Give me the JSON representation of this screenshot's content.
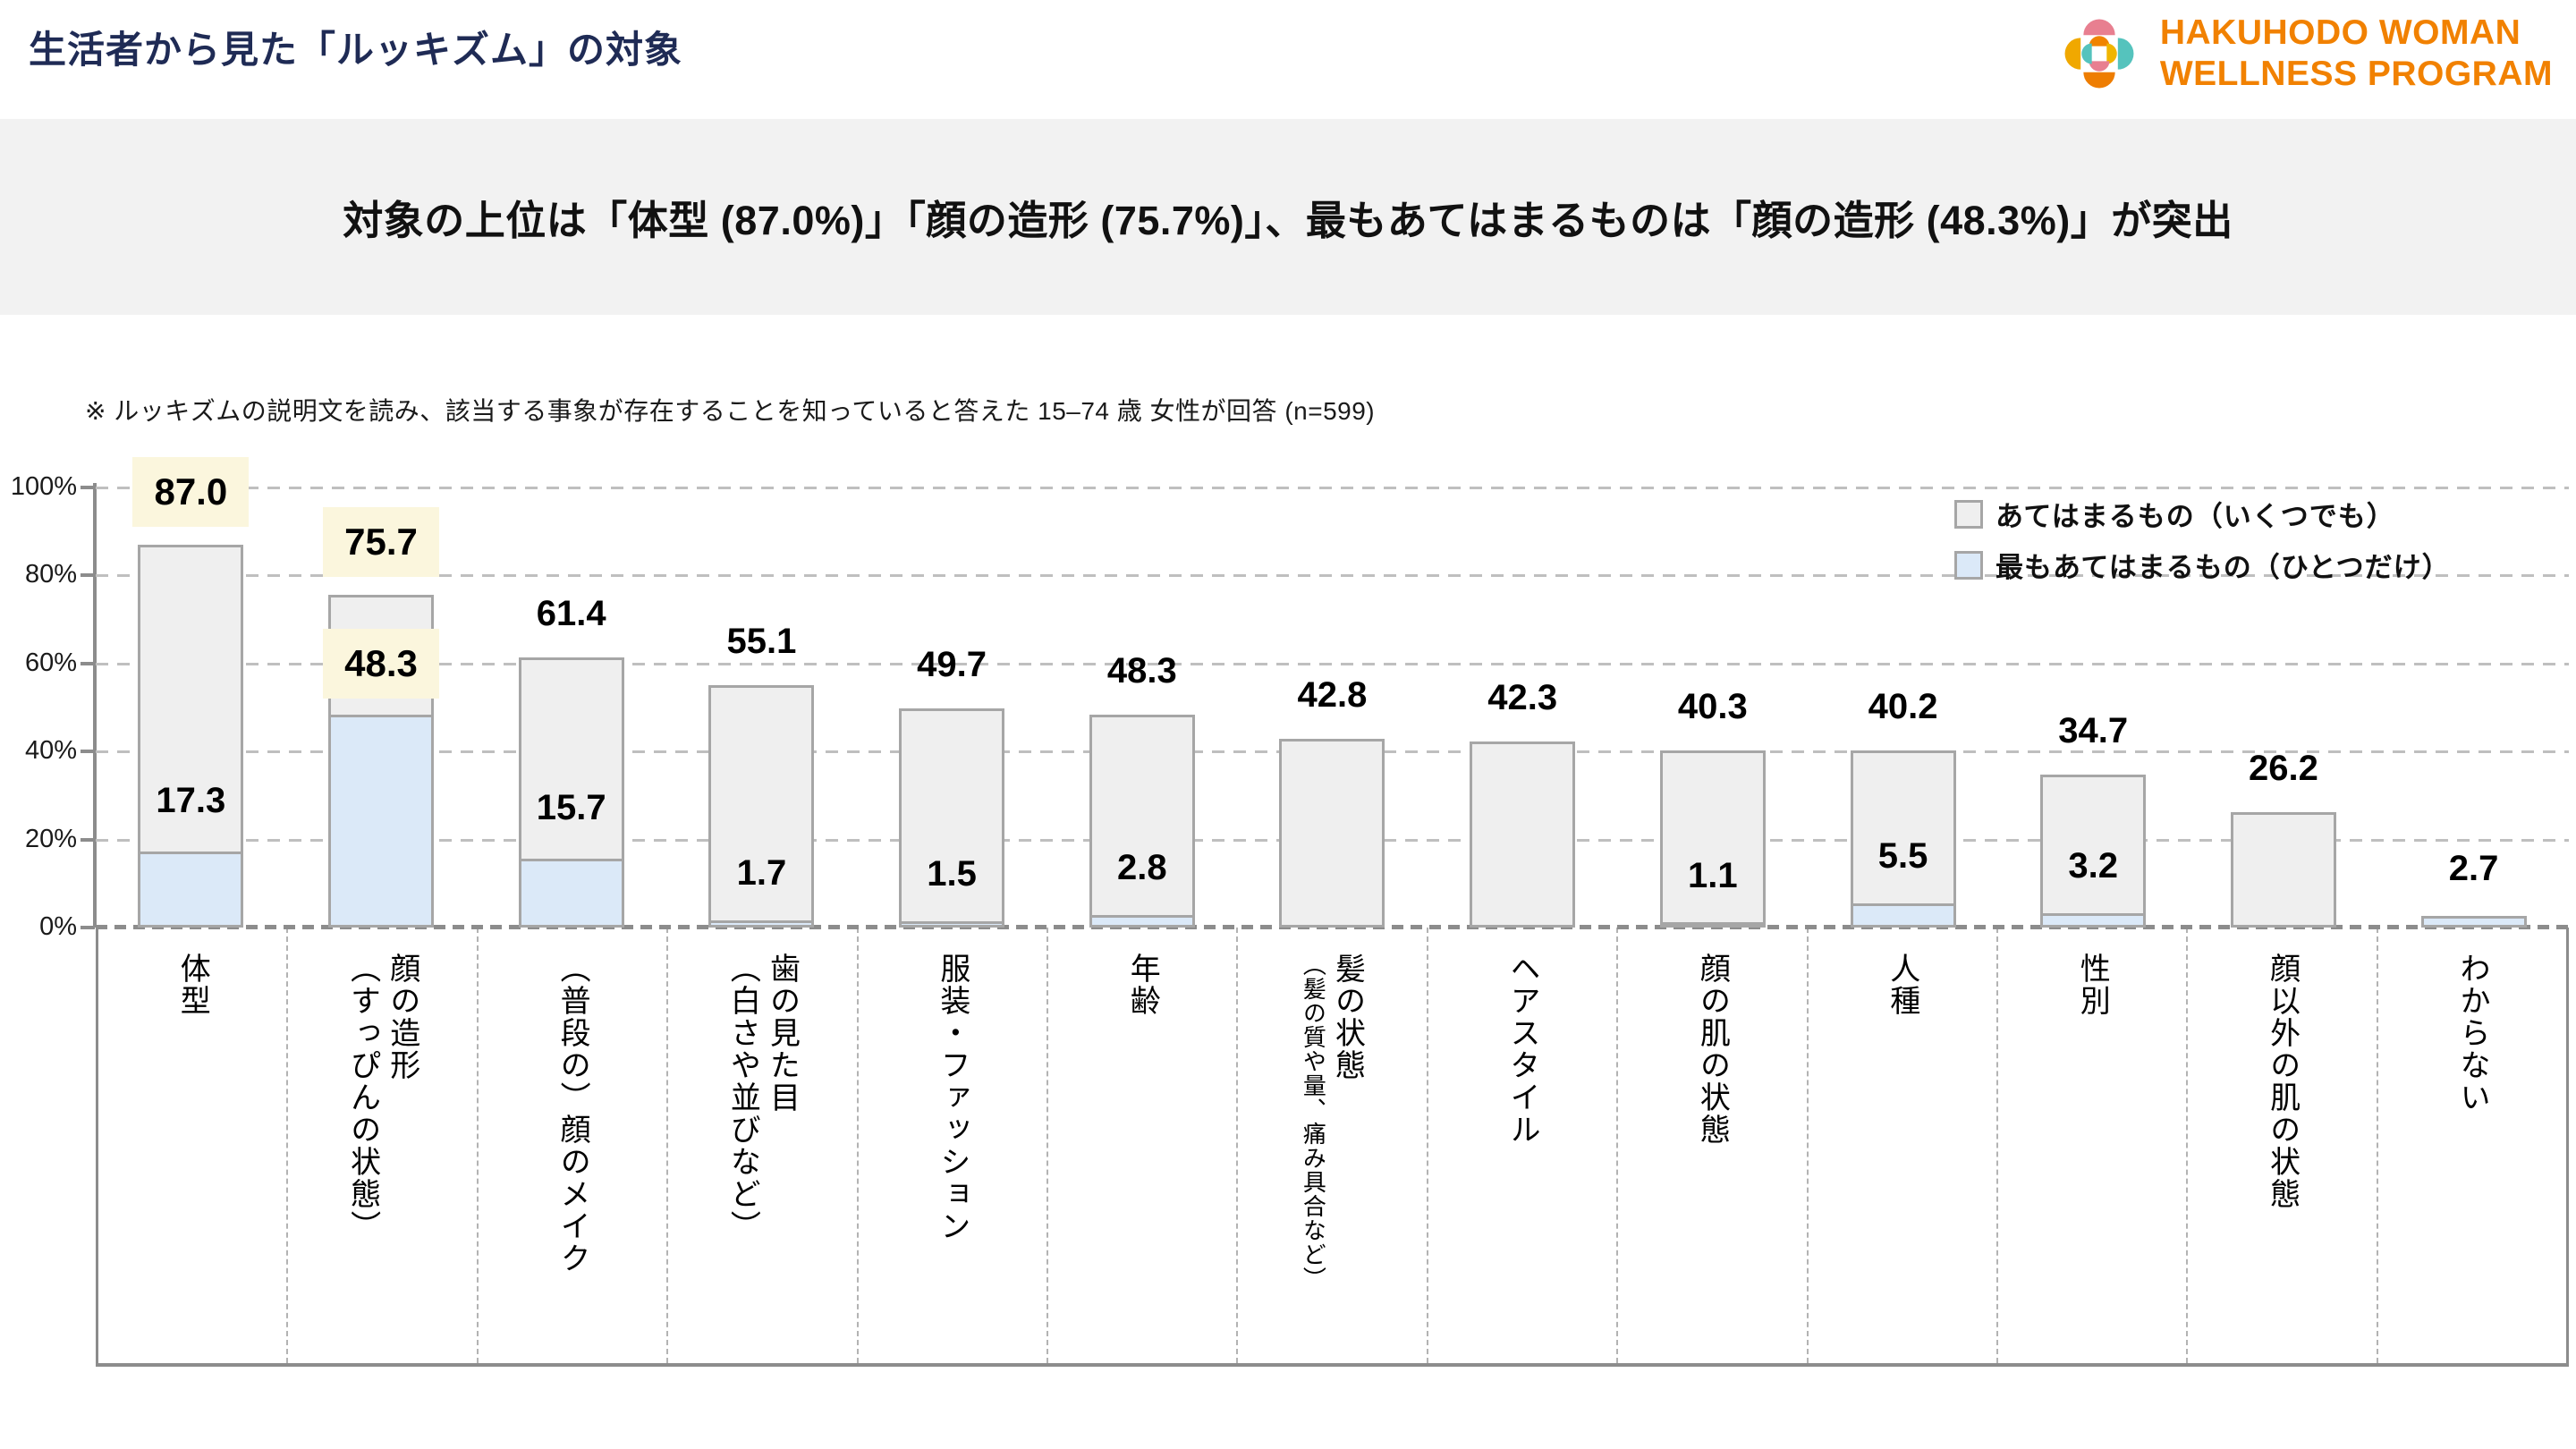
{
  "page": {
    "title": "生活者から見た「ルッキズム」の対象"
  },
  "logo": {
    "line1": "HAKUHODO WOMAN",
    "line2": "WELLNESS PROGRAM",
    "text_color": "#F18101",
    "petal_colors": {
      "outer_top": "#E87F90",
      "outer_right": "#55C3BD",
      "outer_bottom": "#EE7D01",
      "outer_left": "#F0A800",
      "inner_top": "#F08300",
      "inner_right": "#F0B500",
      "inner_bottom": "#E87F90",
      "inner_left": "#55C3BD"
    }
  },
  "headline": {
    "text": "対象の上位は「体型 (87.0%)」「顔の造形 (75.7%)」、最もあてはまるものは「顔の造形 (48.3%)」が突出",
    "background": "#F2F2F2"
  },
  "note": {
    "text": "※ ルッキズムの説明文を読み、該当する事象が存在することを知っていると答えた 15–74 歳 女性が回答 (n=599)"
  },
  "chart_data": {
    "type": "bar",
    "title": "",
    "xlabel": "",
    "ylabel": "",
    "ylim": [
      0,
      100
    ],
    "yticks": [
      "0%",
      "20%",
      "40%",
      "60%",
      "80%",
      "100%"
    ],
    "grid": "dashed-horizontal",
    "legend_position": "top-right",
    "categories": [
      "体型",
      "顔の造形（すっぴんの状態）",
      "（普段の）顔のメイク",
      "歯の見た目（白さや並びなど）",
      "服装・ファッション",
      "年齢",
      "髪の状態（髪の質や量、痛み具合など）",
      "ヘアスタイル",
      "顔の肌の状態",
      "人種",
      "性別",
      "顔以外の肌の状態",
      "わからない"
    ],
    "category_columns": [
      {
        "main": "体型",
        "sub": "",
        "sub_small": false
      },
      {
        "main": "顔の造形",
        "sub": "（すっぴんの状態）",
        "sub_small": false
      },
      {
        "main": "（普段の）顔のメイク",
        "sub": "",
        "sub_small": false
      },
      {
        "main": "歯の見た目",
        "sub": "（白さや並びなど）",
        "sub_small": false
      },
      {
        "main": "服装・ファッション",
        "sub": "",
        "sub_small": false
      },
      {
        "main": "年齢",
        "sub": "",
        "sub_small": false
      },
      {
        "main": "髪の状態",
        "sub": "（髪の質や量、痛み具合など）",
        "sub_small": true
      },
      {
        "main": "ヘアスタイル",
        "sub": "",
        "sub_small": false
      },
      {
        "main": "顔の肌の状態",
        "sub": "",
        "sub_small": false
      },
      {
        "main": "人種",
        "sub": "",
        "sub_small": false
      },
      {
        "main": "性別",
        "sub": "",
        "sub_small": false
      },
      {
        "main": "顔以外の肌の状態",
        "sub": "",
        "sub_small": false
      },
      {
        "main": "わからない",
        "sub": "",
        "sub_small": false
      }
    ],
    "series": [
      {
        "name": "あてはまるもの（いくつでも）",
        "color": "#EFEFEF",
        "values": [
          87.0,
          75.7,
          61.4,
          55.1,
          49.7,
          48.3,
          42.8,
          42.3,
          40.3,
          40.2,
          34.7,
          26.2,
          null
        ]
      },
      {
        "name": "最もあてはまるもの（ひとつだけ）",
        "color": "#DBE9F8",
        "values": [
          17.3,
          48.3,
          15.7,
          1.7,
          1.5,
          2.8,
          null,
          null,
          1.1,
          5.5,
          3.2,
          null,
          2.7
        ]
      }
    ],
    "highlight": {
      "all": [
        0,
        1
      ],
      "top": [
        1
      ],
      "background": "#FBF6DD"
    },
    "bar_border_color": "#A6A6A6"
  }
}
